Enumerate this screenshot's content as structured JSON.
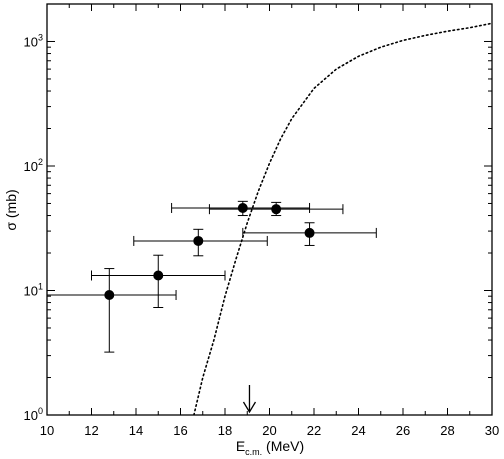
{
  "chart_data": {
    "type": "scatter",
    "title": "",
    "xlabel": {
      "main": "E",
      "sub": "c.m.",
      "unit": " (MeV)"
    },
    "ylabel": "σ (mb)",
    "x_range": [
      10,
      30
    ],
    "y_range": [
      1,
      2000
    ],
    "y_scale": "log",
    "x_ticks": [
      10,
      12,
      14,
      16,
      18,
      20,
      22,
      24,
      26,
      28,
      30
    ],
    "y_ticks": [
      {
        "value": 1,
        "base": "10",
        "exp": "0"
      },
      {
        "value": 10,
        "base": "10",
        "exp": "1"
      },
      {
        "value": 100,
        "base": "10",
        "exp": "2"
      },
      {
        "value": 1000,
        "base": "10",
        "exp": "3"
      }
    ],
    "grid": false,
    "legend": "none",
    "points": [
      {
        "x": 12.8,
        "y": 9.2,
        "xerr_low": 10.0,
        "xerr_high": 15.8,
        "yerr_low": 3.2,
        "yerr_high": 15.0
      },
      {
        "x": 15.0,
        "y": 13.2,
        "xerr_low": 12.0,
        "xerr_high": 18.0,
        "yerr_low": 7.3,
        "yerr_high": 19.2
      },
      {
        "x": 16.8,
        "y": 25.0,
        "xerr_low": 13.9,
        "xerr_high": 19.9,
        "yerr_low": 19.0,
        "yerr_high": 31.0
      },
      {
        "x": 18.8,
        "y": 46.0,
        "xerr_low": 15.6,
        "xerr_high": 21.8,
        "yerr_low": 40.0,
        "yerr_high": 52.0
      },
      {
        "x": 20.3,
        "y": 45.0,
        "xerr_low": 17.3,
        "xerr_high": 23.3,
        "yerr_low": 40.0,
        "yerr_high": 51.0
      },
      {
        "x": 21.8,
        "y": 29.0,
        "xerr_low": 18.8,
        "xerr_high": 24.8,
        "yerr_low": 23.0,
        "yerr_high": 35.0
      }
    ],
    "curve": {
      "style": "dotted",
      "x": [
        16.6,
        17.0,
        17.5,
        18.0,
        18.5,
        19.0,
        19.5,
        20.0,
        20.5,
        21.0,
        22.0,
        23.0,
        24.0,
        25.0,
        26.0,
        27.0,
        28.0,
        29.0,
        30.0
      ],
      "y": [
        1.0,
        2.0,
        4.0,
        9.0,
        18.0,
        35.0,
        63.0,
        105.0,
        165.0,
        240.0,
        420.0,
        600.0,
        760.0,
        900.0,
        1020.0,
        1120.0,
        1210.0,
        1290.0,
        1400.0
      ]
    },
    "arrow": {
      "x": 19.1,
      "direction": "down"
    }
  }
}
